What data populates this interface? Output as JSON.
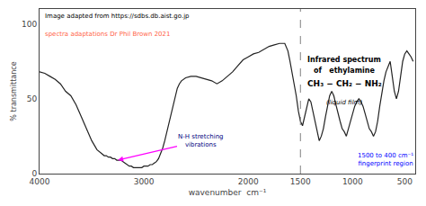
{
  "chart_data": {
    "type": "line",
    "xlabel": "wavenumber  cm⁻¹",
    "ylabel": "% transmittance",
    "color": "#222222",
    "xlim": [
      4000,
      400
    ],
    "ylim": [
      0,
      110
    ],
    "xticks": [
      4000,
      3000,
      2000,
      1500,
      1000,
      500
    ],
    "yticks": [
      0,
      50,
      100
    ],
    "grid": false,
    "vlines": [
      1500
    ],
    "annotations": [
      "Infrared spectrum",
      "of   ethylamine",
      "CH₃ − CH₂ − NH₂",
      "(liquid film)",
      "Image adapted from https://sdbs.db.aist.go.jp",
      "spectra adaptations Dr Phil Brown 2021",
      "N-H stretching\nvibrations",
      "1500 to 400 cm⁻¹\nfingerprint region"
    ],
    "x": [
      4000,
      3950,
      3900,
      3850,
      3800,
      3750,
      3700,
      3650,
      3600,
      3550,
      3500,
      3450,
      3400,
      3380,
      3360,
      3340,
      3320,
      3300,
      3280,
      3260,
      3240,
      3220,
      3200,
      3180,
      3160,
      3140,
      3120,
      3100,
      3080,
      3060,
      3040,
      3020,
      3000,
      2980,
      2960,
      2940,
      2920,
      2900,
      2880,
      2860,
      2840,
      2820,
      2800,
      2780,
      2760,
      2740,
      2720,
      2700,
      2680,
      2660,
      2640,
      2600,
      2550,
      2500,
      2450,
      2400,
      2350,
      2300,
      2250,
      2200,
      2150,
      2100,
      2050,
      2000,
      1950,
      1900,
      1850,
      1800,
      1750,
      1700,
      1650,
      1620,
      1600,
      1580,
      1560,
      1540,
      1520,
      1500,
      1480,
      1460,
      1440,
      1420,
      1400,
      1380,
      1360,
      1340,
      1320,
      1300,
      1280,
      1260,
      1240,
      1220,
      1200,
      1180,
      1160,
      1140,
      1120,
      1100,
      1080,
      1060,
      1040,
      1020,
      1000,
      980,
      960,
      940,
      920,
      900,
      880,
      860,
      840,
      820,
      800,
      780,
      760,
      740,
      720,
      700,
      680,
      660,
      640,
      620,
      600,
      580,
      560,
      540,
      520,
      500,
      480,
      460,
      440,
      420
    ],
    "values": [
      68,
      67,
      65,
      63,
      60,
      55,
      52,
      46,
      38,
      30,
      22,
      16,
      13,
      12,
      12,
      11,
      11,
      10,
      10,
      9,
      9,
      9,
      8,
      7,
      6,
      5,
      5,
      4,
      4,
      4,
      4,
      4,
      5,
      5,
      5,
      6,
      6,
      7,
      8,
      10,
      13,
      17,
      22,
      28,
      34,
      40,
      46,
      52,
      57,
      60,
      62,
      64,
      65,
      65,
      64,
      63,
      62,
      60,
      62,
      65,
      68,
      72,
      76,
      78,
      80,
      81,
      83,
      85,
      86,
      87,
      87,
      82,
      75,
      68,
      60,
      52,
      42,
      35,
      32,
      38,
      45,
      50,
      48,
      42,
      35,
      28,
      22,
      25,
      30,
      38,
      45,
      52,
      55,
      52,
      46,
      40,
      35,
      30,
      28,
      25,
      30,
      35,
      40,
      45,
      48,
      50,
      48,
      45,
      40,
      35,
      30,
      28,
      25,
      28,
      35,
      45,
      55,
      62,
      68,
      72,
      75,
      65,
      55,
      50,
      55,
      65,
      75,
      80,
      82,
      80,
      78,
      75
    ]
  }
}
